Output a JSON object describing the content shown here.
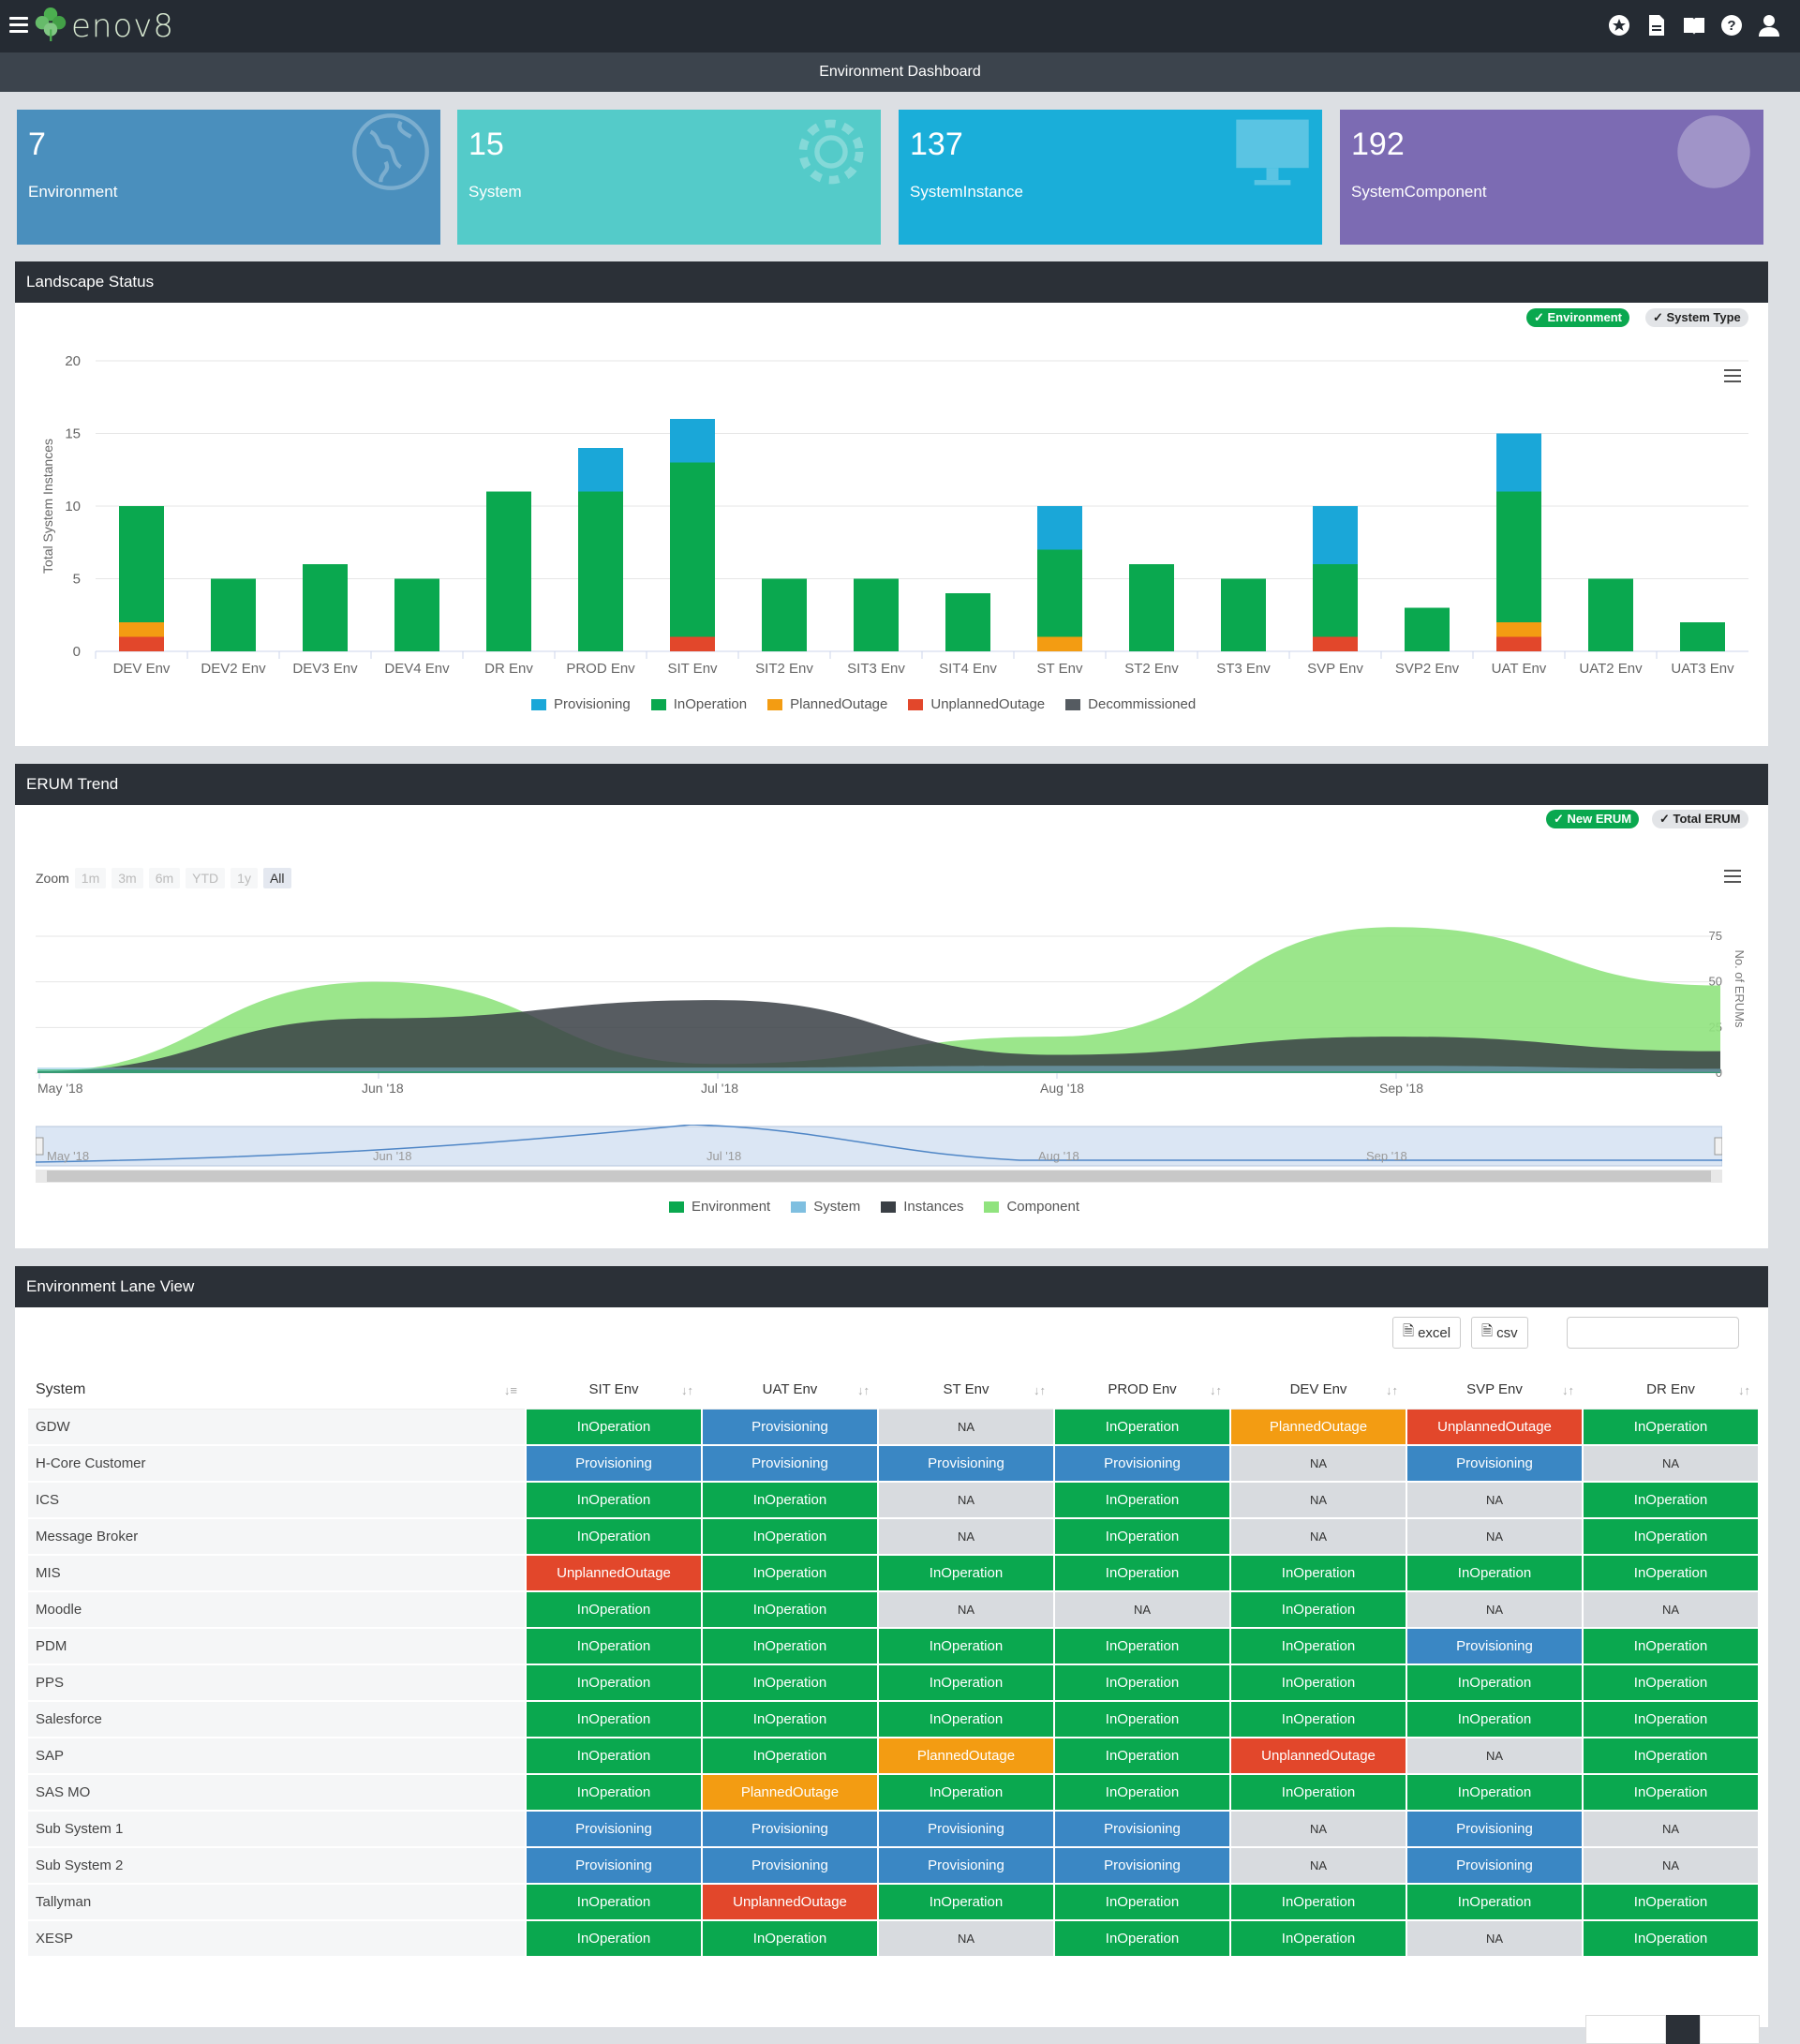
{
  "app": {
    "name": "enov8",
    "subtitle": "Environment Dashboard"
  },
  "top_icons": [
    "star-icon",
    "document-icon",
    "book-icon",
    "help-icon",
    "user-icon"
  ],
  "cards": [
    {
      "value": "7",
      "label": "Environment",
      "color": "#4a8fbd",
      "icon": "globe-icon"
    },
    {
      "value": "15",
      "label": "System",
      "color": "#54cbc9",
      "icon": "gear-icon"
    },
    {
      "value": "137",
      "label": "SystemInstance",
      "color": "#1aaed9",
      "icon": "monitor-icon"
    },
    {
      "value": "192",
      "label": "SystemComponent",
      "color": "#7c6bb3",
      "icon": "cloud-icon"
    }
  ],
  "landscape": {
    "title": "Landscape Status",
    "toggles": {
      "environment": "Environment",
      "system_type": "System Type"
    },
    "chart_data": {
      "type": "bar",
      "stacked": true,
      "ylabel": "Total System Instances",
      "ylim": [
        0,
        20
      ],
      "yticks": [
        0,
        5,
        10,
        15,
        20
      ],
      "categories": [
        "DEV Env",
        "DEV2 Env",
        "DEV3 Env",
        "DEV4 Env",
        "DR Env",
        "PROD Env",
        "SIT Env",
        "SIT2 Env",
        "SIT3 Env",
        "SIT4 Env",
        "ST Env",
        "ST2 Env",
        "ST3 Env",
        "SVP Env",
        "SVP2 Env",
        "UAT Env",
        "UAT2 Env",
        "UAT3 Env"
      ],
      "series": [
        {
          "name": "Provisioning",
          "color": "#1aa7d8",
          "values": [
            0,
            0,
            0,
            0,
            0,
            3,
            3,
            0,
            0,
            0,
            3,
            0,
            0,
            4,
            0,
            4,
            0,
            0
          ]
        },
        {
          "name": "InOperation",
          "color": "#0aa84f",
          "values": [
            8,
            5,
            6,
            5,
            11,
            11,
            12,
            5,
            5,
            4,
            6,
            6,
            5,
            5,
            3,
            9,
            5,
            2
          ]
        },
        {
          "name": "PlannedOutage",
          "color": "#f39c12",
          "values": [
            1,
            0,
            0,
            0,
            0,
            0,
            0,
            0,
            0,
            0,
            1,
            0,
            0,
            0,
            0,
            1,
            0,
            0
          ]
        },
        {
          "name": "UnplannedOutage",
          "color": "#e2472b",
          "values": [
            1,
            0,
            0,
            0,
            0,
            0,
            1,
            0,
            0,
            0,
            0,
            0,
            0,
            1,
            0,
            1,
            0,
            0
          ]
        },
        {
          "name": "Decommissioned",
          "color": "#555b61",
          "values": [
            0,
            0,
            0,
            0,
            0,
            0,
            0,
            0,
            0,
            0,
            0,
            0,
            0,
            0,
            0,
            0,
            0,
            0
          ]
        }
      ],
      "legend_position": "bottom"
    }
  },
  "erum": {
    "title": "ERUM Trend",
    "toggles": {
      "new": "New ERUM",
      "total": "Total ERUM"
    },
    "zoom_label": "Zoom",
    "zoom_options": [
      "1m",
      "3m",
      "6m",
      "YTD",
      "1y",
      "All"
    ],
    "zoom_selected": "All",
    "navigator_labels": [
      "May '18",
      "Jun '18",
      "Jul '18",
      "Aug '18",
      "Sep '18"
    ],
    "chart_data": {
      "type": "area",
      "x": [
        "May '18",
        "Jun '18",
        "Jul '18",
        "Aug '18",
        "Sep '18"
      ],
      "ylabel": "No. of ERUMs",
      "ylim": [
        0,
        75
      ],
      "yticks": [
        0,
        25,
        50,
        75
      ],
      "series": [
        {
          "name": "Environment",
          "color": "#0aa84f",
          "values": [
            2,
            1,
            1,
            1,
            1
          ]
        },
        {
          "name": "System",
          "color": "#7fbfe0",
          "values": [
            3,
            3,
            3,
            4,
            4
          ]
        },
        {
          "name": "Instances",
          "color": "#3a3f45",
          "values": [
            1,
            30,
            40,
            10,
            20
          ]
        },
        {
          "name": "Component",
          "color": "#90e37e",
          "values": [
            1,
            50,
            5,
            20,
            80
          ]
        }
      ],
      "legend_position": "bottom"
    }
  },
  "lane": {
    "title": "Environment Lane View",
    "export": {
      "excel": "excel",
      "csv": "csv"
    },
    "columns": [
      "System",
      "SIT Env",
      "UAT Env",
      "ST Env",
      "PROD Env",
      "DEV Env",
      "SVP Env",
      "DR Env"
    ],
    "rows": [
      {
        "system": "GDW",
        "cells": [
          "InOperation",
          "Provisioning",
          "NA",
          "InOperation",
          "PlannedOutage",
          "UnplannedOutage",
          "InOperation"
        ]
      },
      {
        "system": "H-Core Customer",
        "cells": [
          "Provisioning",
          "Provisioning",
          "Provisioning",
          "Provisioning",
          "NA",
          "Provisioning",
          "NA"
        ]
      },
      {
        "system": "ICS",
        "cells": [
          "InOperation",
          "InOperation",
          "NA",
          "InOperation",
          "NA",
          "NA",
          "InOperation"
        ]
      },
      {
        "system": "Message Broker",
        "cells": [
          "InOperation",
          "InOperation",
          "NA",
          "InOperation",
          "NA",
          "NA",
          "InOperation"
        ]
      },
      {
        "system": "MIS",
        "cells": [
          "UnplannedOutage",
          "InOperation",
          "InOperation",
          "InOperation",
          "InOperation",
          "InOperation",
          "InOperation"
        ]
      },
      {
        "system": "Moodle",
        "cells": [
          "InOperation",
          "InOperation",
          "NA",
          "NA",
          "InOperation",
          "NA",
          "NA"
        ]
      },
      {
        "system": "PDM",
        "cells": [
          "InOperation",
          "InOperation",
          "InOperation",
          "InOperation",
          "InOperation",
          "Provisioning",
          "InOperation"
        ]
      },
      {
        "system": "PPS",
        "cells": [
          "InOperation",
          "InOperation",
          "InOperation",
          "InOperation",
          "InOperation",
          "InOperation",
          "InOperation"
        ]
      },
      {
        "system": "Salesforce",
        "cells": [
          "InOperation",
          "InOperation",
          "InOperation",
          "InOperation",
          "InOperation",
          "InOperation",
          "InOperation"
        ]
      },
      {
        "system": "SAP",
        "cells": [
          "InOperation",
          "InOperation",
          "PlannedOutage",
          "InOperation",
          "UnplannedOutage",
          "NA",
          "InOperation"
        ]
      },
      {
        "system": "SAS MO",
        "cells": [
          "InOperation",
          "PlannedOutage",
          "InOperation",
          "InOperation",
          "InOperation",
          "InOperation",
          "InOperation"
        ]
      },
      {
        "system": "Sub System 1",
        "cells": [
          "Provisioning",
          "Provisioning",
          "Provisioning",
          "Provisioning",
          "NA",
          "Provisioning",
          "NA"
        ]
      },
      {
        "system": "Sub System 2",
        "cells": [
          "Provisioning",
          "Provisioning",
          "Provisioning",
          "Provisioning",
          "NA",
          "Provisioning",
          "NA"
        ]
      },
      {
        "system": "Tallyman",
        "cells": [
          "InOperation",
          "UnplannedOutage",
          "InOperation",
          "InOperation",
          "InOperation",
          "InOperation",
          "InOperation"
        ]
      },
      {
        "system": "XESP",
        "cells": [
          "InOperation",
          "InOperation",
          "NA",
          "InOperation",
          "InOperation",
          "NA",
          "InOperation"
        ]
      }
    ]
  }
}
